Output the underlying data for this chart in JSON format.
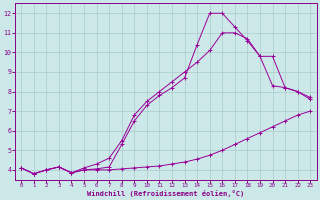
{
  "xlabel": "Windchill (Refroidissement éolien,°C)",
  "background_color": "#cce8e8",
  "grid_color": "#aacccc",
  "line_color": "#990099",
  "xlim": [
    -0.5,
    23.5
  ],
  "ylim": [
    3.5,
    12.5
  ],
  "xticks": [
    0,
    1,
    2,
    3,
    4,
    5,
    6,
    7,
    8,
    9,
    10,
    11,
    12,
    13,
    14,
    15,
    16,
    17,
    18,
    19,
    20,
    21,
    22,
    23
  ],
  "yticks": [
    4,
    5,
    6,
    7,
    8,
    9,
    10,
    11,
    12
  ],
  "series1_y": [
    4.1,
    3.8,
    4.0,
    4.15,
    3.85,
    4.0,
    4.0,
    4.0,
    4.05,
    4.1,
    4.15,
    4.2,
    4.3,
    4.4,
    4.55,
    4.75,
    5.0,
    5.3,
    5.6,
    5.9,
    6.2,
    6.5,
    6.8,
    7.0
  ],
  "series2_y": [
    4.1,
    3.8,
    4.0,
    4.15,
    3.85,
    4.0,
    4.05,
    4.15,
    5.3,
    6.5,
    7.3,
    7.8,
    8.2,
    8.7,
    10.4,
    12.0,
    12.0,
    11.3,
    10.6,
    9.8,
    8.3,
    8.2,
    8.0,
    7.7
  ],
  "series3_y": [
    4.1,
    3.8,
    4.0,
    4.15,
    3.85,
    4.1,
    4.3,
    4.6,
    5.5,
    6.8,
    7.5,
    8.0,
    8.5,
    9.0,
    9.5,
    10.1,
    11.0,
    11.0,
    10.7,
    9.8,
    9.8,
    8.2,
    8.0,
    7.6
  ]
}
